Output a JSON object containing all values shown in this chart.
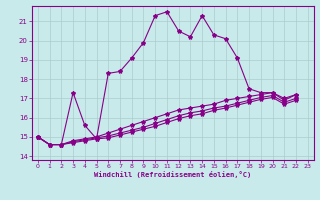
{
  "xlabel": "Windchill (Refroidissement éolien,°C)",
  "xlim": [
    -0.5,
    23.5
  ],
  "ylim": [
    13.8,
    21.8
  ],
  "yticks": [
    14,
    15,
    16,
    17,
    18,
    19,
    20,
    21
  ],
  "xticks": [
    0,
    1,
    2,
    3,
    4,
    5,
    6,
    7,
    8,
    9,
    10,
    11,
    12,
    13,
    14,
    15,
    16,
    17,
    18,
    19,
    20,
    21,
    22,
    23
  ],
  "bg_color": "#c8eaea",
  "line_color": "#880088",
  "grid_color": "#aacccc",
  "series": [
    [
      15.0,
      14.6,
      14.6,
      17.3,
      15.6,
      14.9,
      18.3,
      18.4,
      19.1,
      19.9,
      21.3,
      21.5,
      20.5,
      20.2,
      21.3,
      20.3,
      20.1,
      19.1,
      17.5,
      17.3,
      17.3,
      16.9,
      17.2
    ],
    [
      15.0,
      14.6,
      14.6,
      14.8,
      14.9,
      15.0,
      15.2,
      15.4,
      15.6,
      15.8,
      16.0,
      16.2,
      16.4,
      16.5,
      16.6,
      16.7,
      16.9,
      17.0,
      17.1,
      17.2,
      17.3,
      17.0,
      17.2
    ],
    [
      15.0,
      14.6,
      14.6,
      14.75,
      14.85,
      14.95,
      15.05,
      15.2,
      15.35,
      15.5,
      15.7,
      15.9,
      16.1,
      16.25,
      16.35,
      16.5,
      16.6,
      16.75,
      16.9,
      17.05,
      17.15,
      16.8,
      17.0
    ],
    [
      15.0,
      14.6,
      14.6,
      14.7,
      14.8,
      14.9,
      14.95,
      15.1,
      15.25,
      15.4,
      15.55,
      15.75,
      15.95,
      16.1,
      16.2,
      16.38,
      16.5,
      16.65,
      16.8,
      16.95,
      17.05,
      16.7,
      16.9
    ]
  ]
}
